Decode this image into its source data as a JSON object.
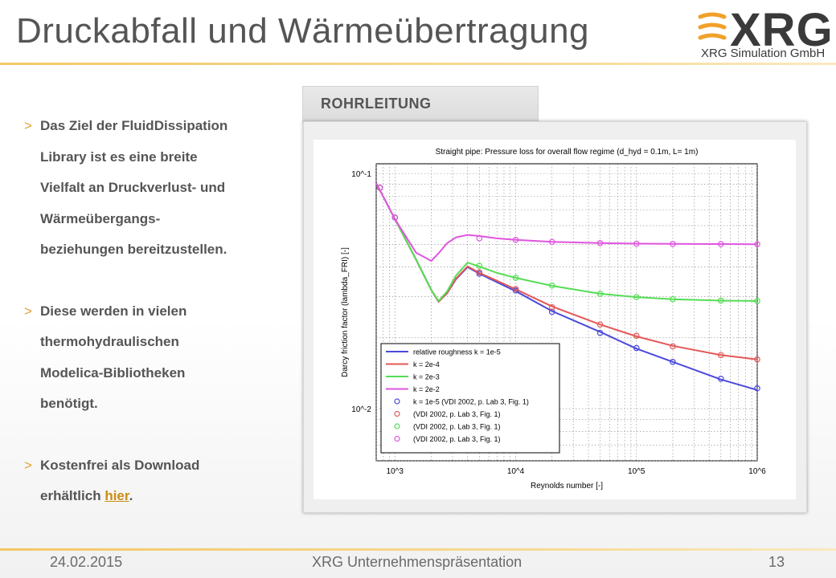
{
  "slide": {
    "title": "Druckabfall und Wärmeübertragung",
    "logo": {
      "name": "XRG",
      "subtitle": "XRG Simulation GmbH"
    },
    "bullets": [
      {
        "marker": ">",
        "lines": [
          "Das Ziel der FluidDissipation",
          "Library ist es eine breite",
          "Vielfalt an Druckverlust- und",
          "Wärmeübergangs-",
          "beziehungen bereitzustellen."
        ]
      },
      {
        "marker": ">",
        "lines": [
          "Diese werden in vielen",
          "thermohydraulischen",
          "Modelica-Bibliotheken",
          "benötigt."
        ]
      },
      {
        "marker": ">",
        "lines": [
          "Kostenfrei als Download"
        ],
        "last_line_prefix": "erhältlich ",
        "link_text": "hier",
        "last_line_suffix": "."
      }
    ],
    "tab_label": "ROHRLEITUNG",
    "footer": {
      "date": "24.02.2015",
      "center": "XRG Unternehmenspräsentation",
      "page": "13"
    },
    "colors": {
      "accent": "#f3c866",
      "text": "#555555",
      "link": "#c98d16"
    }
  },
  "chart_data": {
    "type": "line",
    "title": "Straight pipe: Pressure loss for overall flow regime (d_hyd = 0.1m, L= 1m)",
    "xlabel": "Reynolds number [-]",
    "ylabel": "Darcy friction factor (lambda_FRI) [-]",
    "x_scale": "log",
    "y_scale": "log",
    "xlim": [
      700,
      1000000
    ],
    "ylim": [
      0.006,
      0.11
    ],
    "x_ticks": [
      "10^3",
      "10^4",
      "10^5",
      "10^6"
    ],
    "y_ticks": [
      "10^-1",
      "10^-2"
    ],
    "grid": true,
    "legend_position": "bottom-left",
    "series": [
      {
        "name": "relative roughness k = 1e-5",
        "color": "#4a4adc",
        "kind": "line",
        "x": [
          700,
          1000,
          1500,
          2000,
          2300,
          2700,
          3200,
          4000,
          5000,
          7000,
          10000,
          20000,
          50000,
          100000,
          200000,
          500000,
          1000000
        ],
        "y": [
          0.091,
          0.064,
          0.043,
          0.032,
          0.0285,
          0.0309,
          0.0355,
          0.04,
          0.0375,
          0.0345,
          0.0316,
          0.026,
          0.0212,
          0.018,
          0.0158,
          0.0133,
          0.012
        ]
      },
      {
        "name": "k = 2e-4",
        "color": "#e45757",
        "kind": "line",
        "x": [
          700,
          1000,
          1500,
          2000,
          2300,
          2700,
          3200,
          4000,
          5000,
          7000,
          10000,
          20000,
          50000,
          100000,
          200000,
          500000,
          1000000
        ],
        "y": [
          0.091,
          0.064,
          0.043,
          0.032,
          0.0285,
          0.031,
          0.0357,
          0.0403,
          0.0378,
          0.035,
          0.0322,
          0.0272,
          0.0228,
          0.0203,
          0.0185,
          0.0169,
          0.0162
        ]
      },
      {
        "name": "k = 2e-3",
        "color": "#55dd55",
        "kind": "line",
        "x": [
          700,
          1000,
          1500,
          2000,
          2300,
          2700,
          3200,
          4000,
          5000,
          7000,
          10000,
          20000,
          50000,
          100000,
          200000,
          500000,
          1000000
        ],
        "y": [
          0.091,
          0.064,
          0.043,
          0.032,
          0.0287,
          0.0315,
          0.0368,
          0.0418,
          0.0402,
          0.0378,
          0.036,
          0.0333,
          0.0308,
          0.0298,
          0.0292,
          0.0288,
          0.0287
        ]
      },
      {
        "name": "k = 2e-2",
        "color": "#e055e0",
        "kind": "line",
        "x": [
          700,
          1000,
          1500,
          2000,
          2300,
          2700,
          3200,
          4000,
          5000,
          7000,
          10000,
          20000,
          50000,
          100000,
          200000,
          500000,
          1000000
        ],
        "y": [
          0.091,
          0.064,
          0.046,
          0.0425,
          0.0458,
          0.0505,
          0.0535,
          0.0548,
          0.0542,
          0.053,
          0.0522,
          0.0512,
          0.0506,
          0.0503,
          0.0502,
          0.0501,
          0.05
        ]
      },
      {
        "name": "k = 1e-5 (VDI 2002, p. Lab 3, Fig. 1)",
        "color": "#4a4adc",
        "kind": "marker",
        "x": [
          750,
          1000,
          5000,
          10000,
          20000,
          50000,
          100000,
          200000,
          500000,
          1000000
        ],
        "y": [
          0.087,
          0.065,
          0.0375,
          0.0318,
          0.0258,
          0.021,
          0.0181,
          0.0158,
          0.0134,
          0.0122
        ]
      },
      {
        "name": "(VDI 2002, p. Lab 3, Fig. 1)",
        "color": "#e45757",
        "kind": "marker",
        "x": [
          750,
          1000,
          5000,
          10000,
          20000,
          50000,
          100000,
          200000,
          500000,
          1000000
        ],
        "y": [
          0.087,
          0.065,
          0.038,
          0.0323,
          0.027,
          0.0228,
          0.0204,
          0.0184,
          0.0169,
          0.0162
        ]
      },
      {
        "name": "(VDI 2002, p. Lab 3, Fig. 1)",
        "color": "#55dd55",
        "kind": "marker",
        "x": [
          750,
          1000,
          5000,
          10000,
          20000,
          50000,
          100000,
          200000,
          500000,
          1000000
        ],
        "y": [
          0.087,
          0.065,
          0.0405,
          0.036,
          0.0334,
          0.0308,
          0.0298,
          0.0292,
          0.0288,
          0.0287
        ]
      },
      {
        "name": "(VDI 2002, p. Lab 3, Fig. 1)",
        "color": "#e055e0",
        "kind": "marker",
        "x": [
          750,
          1000,
          5000,
          10000,
          20000,
          50000,
          100000,
          200000,
          500000,
          1000000
        ],
        "y": [
          0.087,
          0.065,
          0.053,
          0.0522,
          0.0512,
          0.0506,
          0.0503,
          0.0502,
          0.0501,
          0.05
        ]
      }
    ]
  }
}
